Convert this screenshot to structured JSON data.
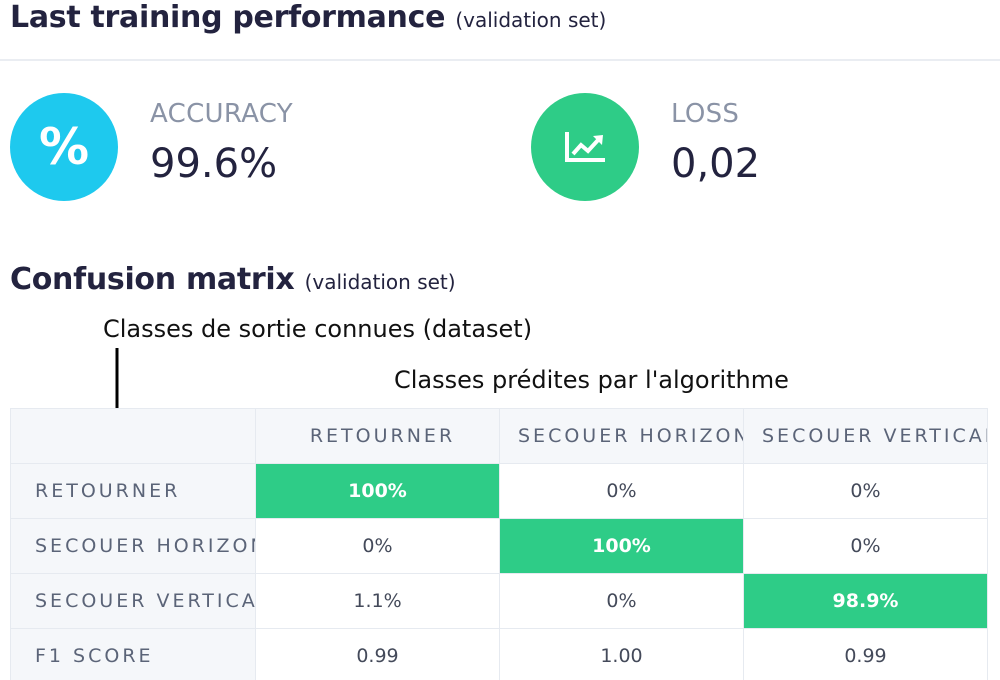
{
  "performance": {
    "title": "Last training performance",
    "subtitle": "(validation set)"
  },
  "metrics": {
    "accuracy": {
      "label": "ACCURACY",
      "value": "99.6%",
      "icon": "percent-icon",
      "color": "#1ec9ee"
    },
    "loss": {
      "label": "LOSS",
      "value": "0,02",
      "icon": "trending-chart-icon",
      "color": "#2ecc87"
    }
  },
  "confusion": {
    "title": "Confusion matrix",
    "subtitle": "(validation set)",
    "annotation_known": "Classes de sortie connues (dataset)",
    "annotation_predicted": "Classes prédites par l'algorithme",
    "columns": [
      "RETOURNER",
      "SECOUER HORIZONTALEMENT",
      "SECOUER VERTICALEMENT"
    ],
    "rows": [
      {
        "label": "RETOURNER",
        "values": [
          "100%",
          "0%",
          "0%"
        ]
      },
      {
        "label": "SECOUER HORIZONTALEMENT",
        "values": [
          "0%",
          "100%",
          "0%"
        ]
      },
      {
        "label": "SECOUER VERTICALEMENT",
        "values": [
          "1.1%",
          "0%",
          "98.9%"
        ]
      },
      {
        "label": "F1 SCORE",
        "values": [
          "0.99",
          "1.00",
          "0.99"
        ]
      }
    ],
    "highlight_color": "#2ecc87"
  }
}
